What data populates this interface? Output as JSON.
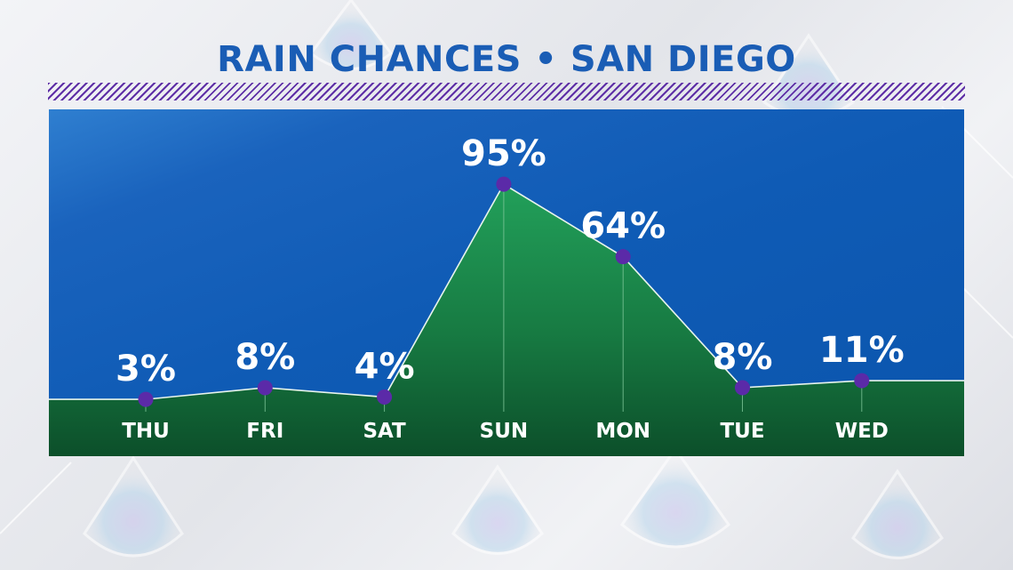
{
  "title": "RAIN CHANCES • SAN DIEGO",
  "colors": {
    "title": "#1a5db5",
    "panel_blue": "#0f5bb5",
    "area_green": "#1e8a4c",
    "point_purple": "#5b2aa8",
    "stripe_purple": "#5e2fa6"
  },
  "chart_data": {
    "type": "area",
    "categories": [
      "THU",
      "FRI",
      "SAT",
      "SUN",
      "MON",
      "TUE",
      "WED"
    ],
    "values": [
      3,
      8,
      4,
      95,
      64,
      8,
      11
    ],
    "value_labels": [
      "3%",
      "8%",
      "4%",
      "95%",
      "64%",
      "8%",
      "11%"
    ],
    "unit": "%",
    "ylim": [
      0,
      100
    ]
  }
}
